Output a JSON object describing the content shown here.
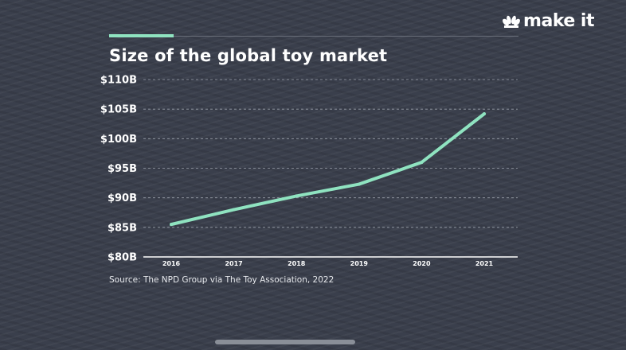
{
  "brand": {
    "text": "make it",
    "logo": "peacock-logo"
  },
  "colors": {
    "accent": "#8fe3c0",
    "background": "#3a3f4c",
    "grid": "#9aa0aa"
  },
  "chart_data": {
    "type": "line",
    "title": "Size of the global toy market",
    "x": [
      "2016",
      "2017",
      "2018",
      "2019",
      "2020",
      "2021"
    ],
    "series": [
      {
        "values": [
          85.5,
          88.0,
          90.3,
          92.3,
          96.0,
          104.2
        ]
      }
    ],
    "ylim": [
      80,
      110
    ],
    "yticks": [
      80,
      85,
      90,
      95,
      100,
      105,
      110
    ],
    "ytick_labels": [
      "$80B",
      "$85B",
      "$90B",
      "$95B",
      "$100B",
      "$105B",
      "$110B"
    ],
    "grid": "horizontal dashed",
    "source": "Source: The NPD Group via The Toy Association, 2022"
  }
}
